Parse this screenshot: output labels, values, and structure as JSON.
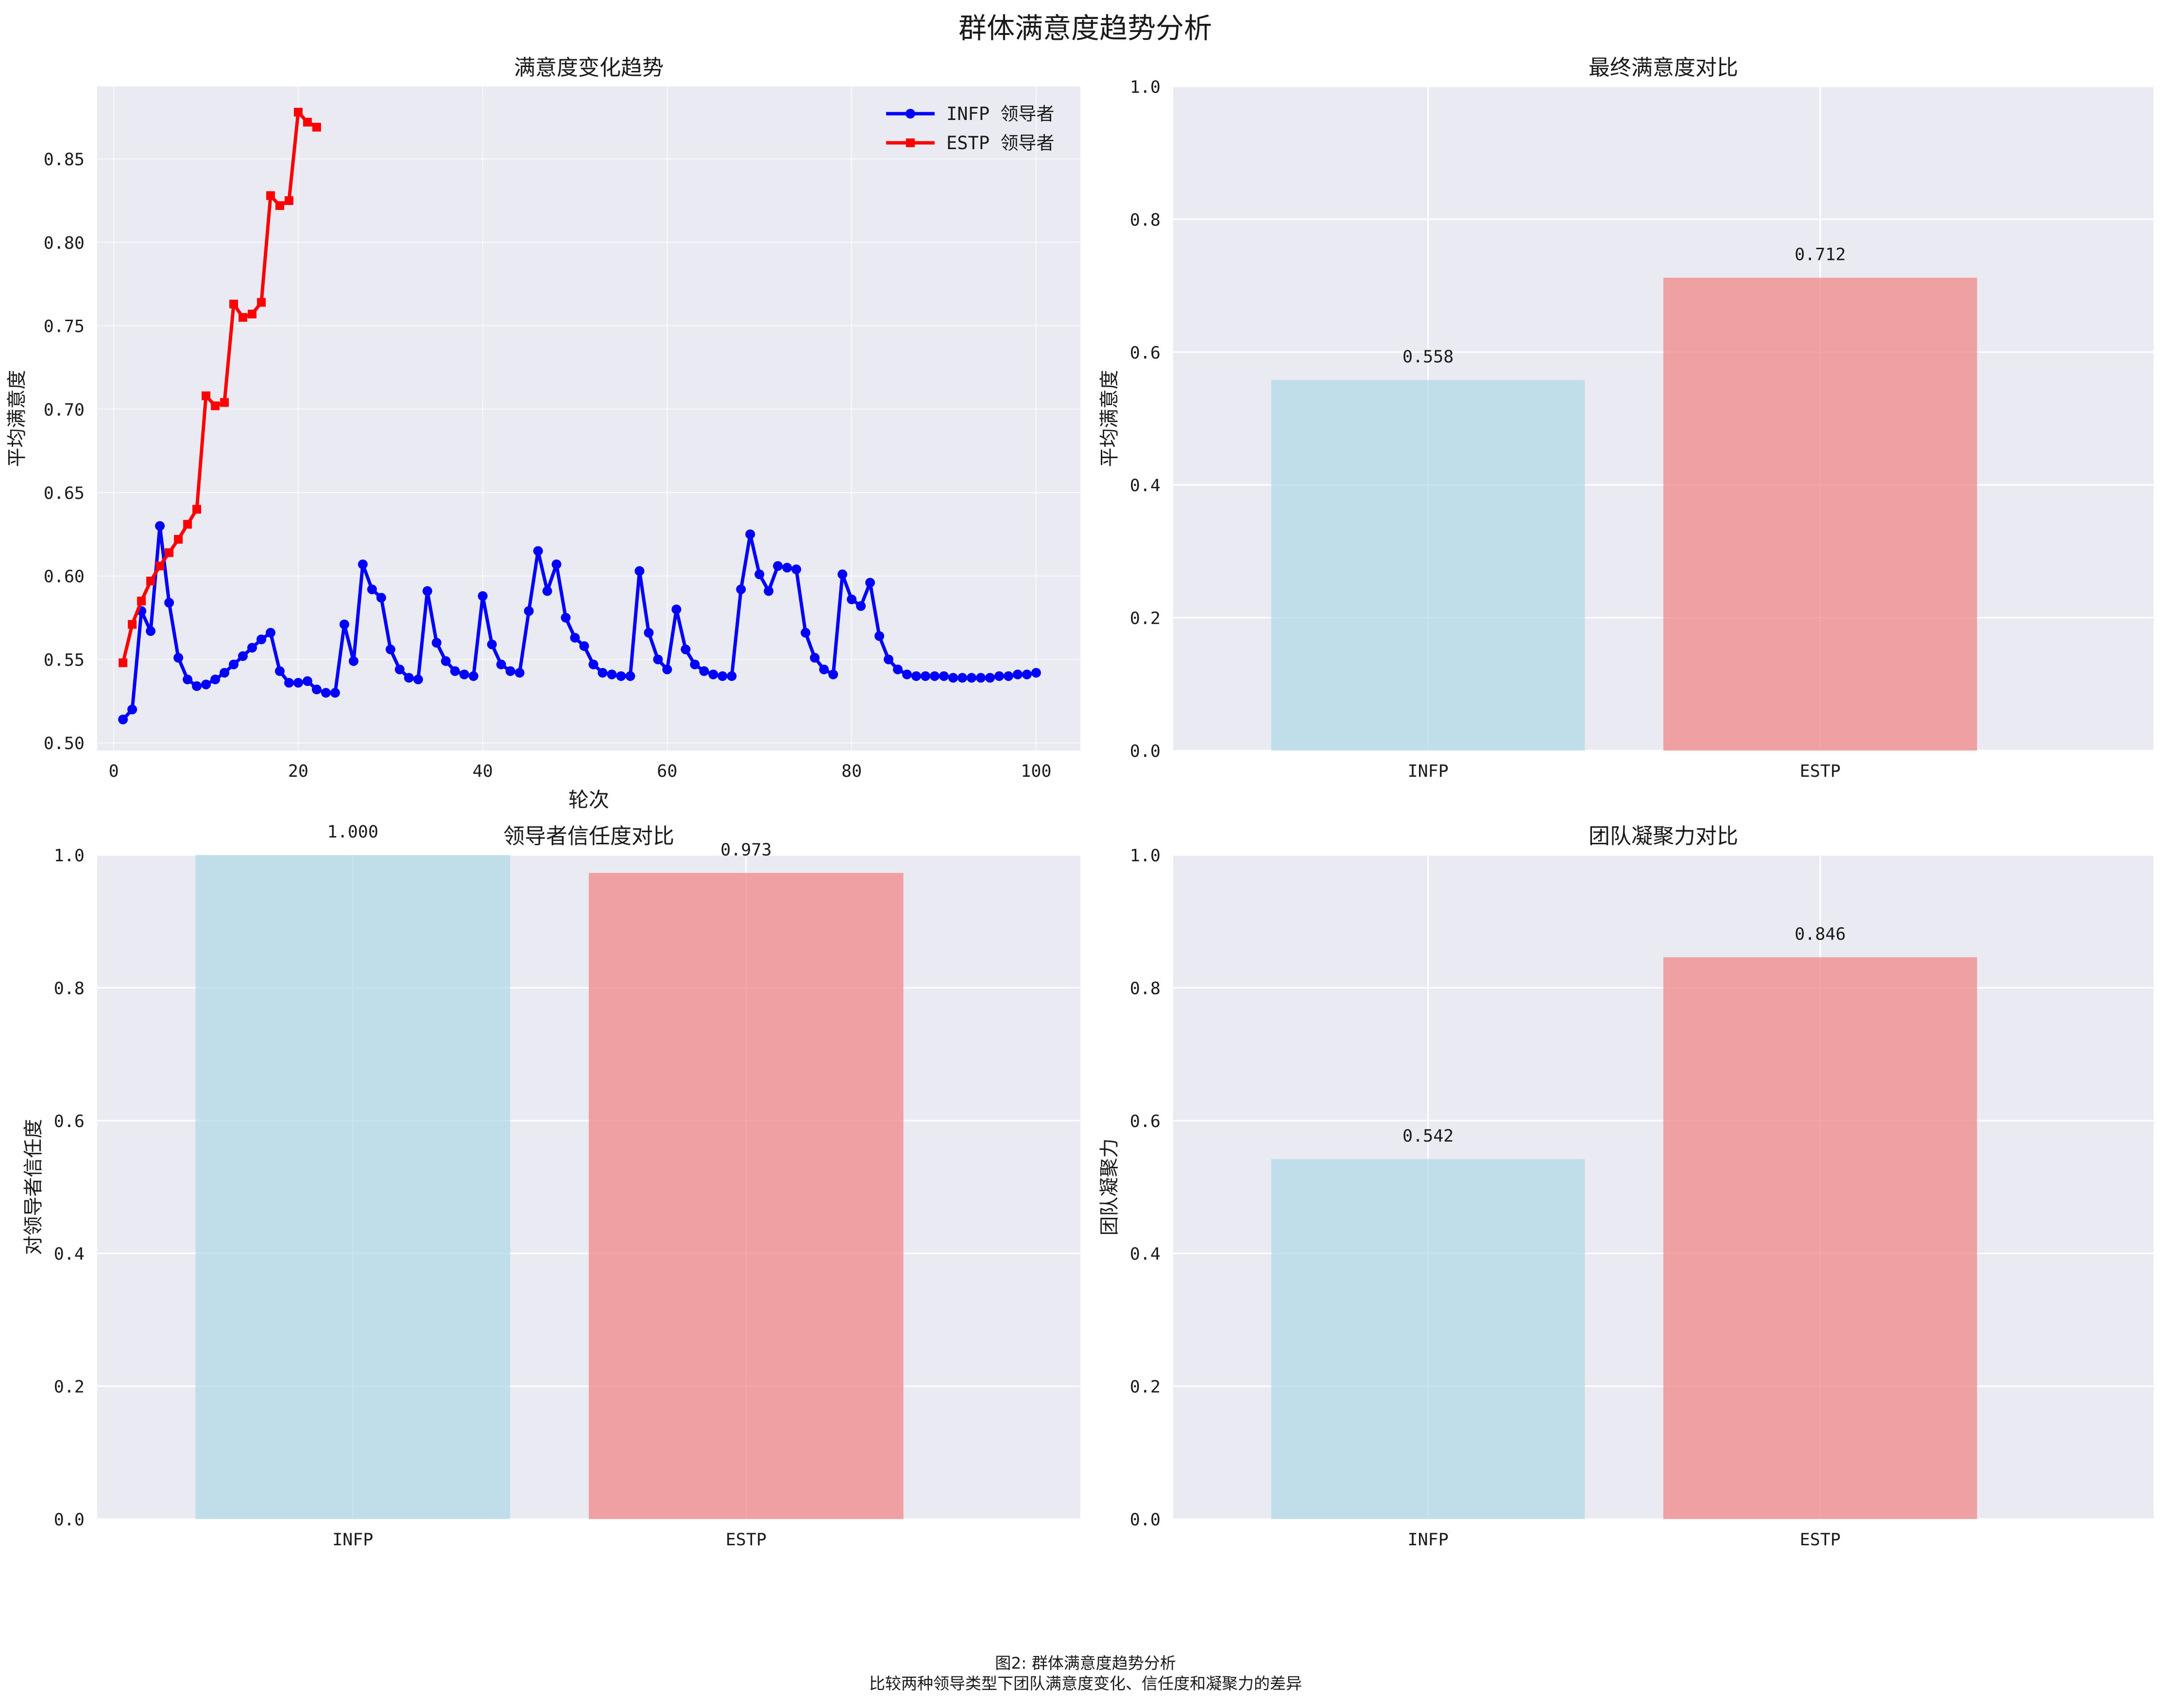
{
  "figure": {
    "suptitle": "群体满意度趋势分析",
    "caption_line1": "图2: 群体满意度趋势分析",
    "caption_line2": "比较两种领导类型下团队满意度变化、信任度和凝聚力的差异"
  },
  "colors": {
    "background": "#eaeaf2",
    "grid": "#ffffff",
    "infp_line": "#0000ff",
    "estp_line": "#ff0000",
    "infp_bar": "#add8e6",
    "estp_bar": "#f08080"
  },
  "chart_data": [
    {
      "id": "trend",
      "type": "line",
      "title": "满意度变化趋势",
      "xlabel": "轮次",
      "ylabel": "平均满意度",
      "xlim": [
        -1.8,
        104.8
      ],
      "ylim": [
        0.4954,
        0.8934
      ],
      "xticks": [
        0,
        20,
        40,
        60,
        80,
        100
      ],
      "yticks": [
        0.5,
        0.55,
        0.6,
        0.65,
        0.7,
        0.75,
        0.8,
        0.85
      ],
      "grid": true,
      "legend": "upper right",
      "series": [
        {
          "name": "INFP 领导者",
          "marker": "circle",
          "color": "#0000ff",
          "x": [
            1,
            2,
            3,
            4,
            5,
            6,
            7,
            8,
            9,
            10,
            11,
            12,
            13,
            14,
            15,
            16,
            17,
            18,
            19,
            20,
            21,
            22,
            23,
            24,
            25,
            26,
            27,
            28,
            29,
            30,
            31,
            32,
            33,
            34,
            35,
            36,
            37,
            38,
            39,
            40,
            41,
            42,
            43,
            44,
            45,
            46,
            47,
            48,
            49,
            50,
            51,
            52,
            53,
            54,
            55,
            56,
            57,
            58,
            59,
            60,
            61,
            62,
            63,
            64,
            65,
            66,
            67,
            68,
            69,
            70,
            71,
            72,
            73,
            74,
            75,
            76,
            77,
            78,
            79,
            80,
            81,
            82,
            83,
            84,
            85,
            86,
            87,
            88,
            89,
            90,
            91,
            92,
            93,
            94,
            95,
            96,
            97,
            98,
            99,
            100
          ],
          "y": [
            0.514,
            0.52,
            0.579,
            0.567,
            0.63,
            0.584,
            0.551,
            0.538,
            0.534,
            0.535,
            0.538,
            0.542,
            0.547,
            0.552,
            0.557,
            0.562,
            0.566,
            0.543,
            0.536,
            0.536,
            0.537,
            0.532,
            0.53,
            0.53,
            0.571,
            0.549,
            0.607,
            0.592,
            0.587,
            0.556,
            0.544,
            0.539,
            0.538,
            0.591,
            0.56,
            0.549,
            0.543,
            0.541,
            0.54,
            0.588,
            0.559,
            0.547,
            0.543,
            0.542,
            0.579,
            0.615,
            0.591,
            0.607,
            0.575,
            0.563,
            0.558,
            0.547,
            0.542,
            0.541,
            0.54,
            0.54,
            0.603,
            0.566,
            0.55,
            0.544,
            0.58,
            0.556,
            0.547,
            0.543,
            0.541,
            0.54,
            0.54,
            0.592,
            0.625,
            0.601,
            0.591,
            0.606,
            0.605,
            0.604,
            0.566,
            0.551,
            0.544,
            0.541,
            0.601,
            0.586,
            0.582,
            0.596,
            0.564,
            0.55,
            0.544,
            0.541,
            0.54,
            0.54,
            0.54,
            0.54,
            0.539,
            0.539,
            0.539,
            0.539,
            0.539,
            0.54,
            0.54,
            0.541,
            0.541,
            0.542
          ]
        },
        {
          "name": "ESTP 领导者",
          "marker": "square",
          "color": "#ff0000",
          "x": [
            1,
            2,
            3,
            4,
            5,
            6,
            7,
            8,
            9,
            10,
            11,
            12,
            13,
            14,
            15,
            16,
            17,
            18,
            19,
            20,
            21,
            22
          ],
          "y": [
            0.548,
            0.571,
            0.585,
            0.597,
            0.606,
            0.614,
            0.622,
            0.631,
            0.64,
            0.708,
            0.702,
            0.704,
            0.763,
            0.755,
            0.757,
            0.764,
            0.828,
            0.822,
            0.825,
            0.878,
            0.872,
            0.869
          ]
        }
      ]
    },
    {
      "id": "final",
      "type": "bar",
      "title": "最终满意度对比",
      "ylabel": "平均满意度",
      "categories": [
        "INFP",
        "ESTP"
      ],
      "values": [
        0.558,
        0.712
      ],
      "labels": [
        "0.558",
        "0.712"
      ],
      "ylim": [
        0,
        1.0
      ],
      "yticks": [
        "0.0",
        "0.2",
        "0.4",
        "0.6",
        "0.8",
        "1.0"
      ],
      "grid": true
    },
    {
      "id": "trust",
      "type": "bar",
      "title": "领导者信任度对比",
      "ylabel": "对领导者信任度",
      "categories": [
        "INFP",
        "ESTP"
      ],
      "values": [
        1.0,
        0.973
      ],
      "labels": [
        "1.000",
        "0.973"
      ],
      "ylim": [
        0,
        1.0
      ],
      "yticks": [
        "0.0",
        "0.2",
        "0.4",
        "0.6",
        "0.8",
        "1.0"
      ],
      "grid": true
    },
    {
      "id": "cohesion",
      "type": "bar",
      "title": "团队凝聚力对比",
      "ylabel": "团队凝聚力",
      "categories": [
        "INFP",
        "ESTP"
      ],
      "values": [
        0.542,
        0.846
      ],
      "labels": [
        "0.542",
        "0.846"
      ],
      "ylim": [
        0,
        1.0
      ],
      "yticks": [
        "0.0",
        "0.2",
        "0.4",
        "0.6",
        "0.8",
        "1.0"
      ],
      "grid": true
    }
  ]
}
